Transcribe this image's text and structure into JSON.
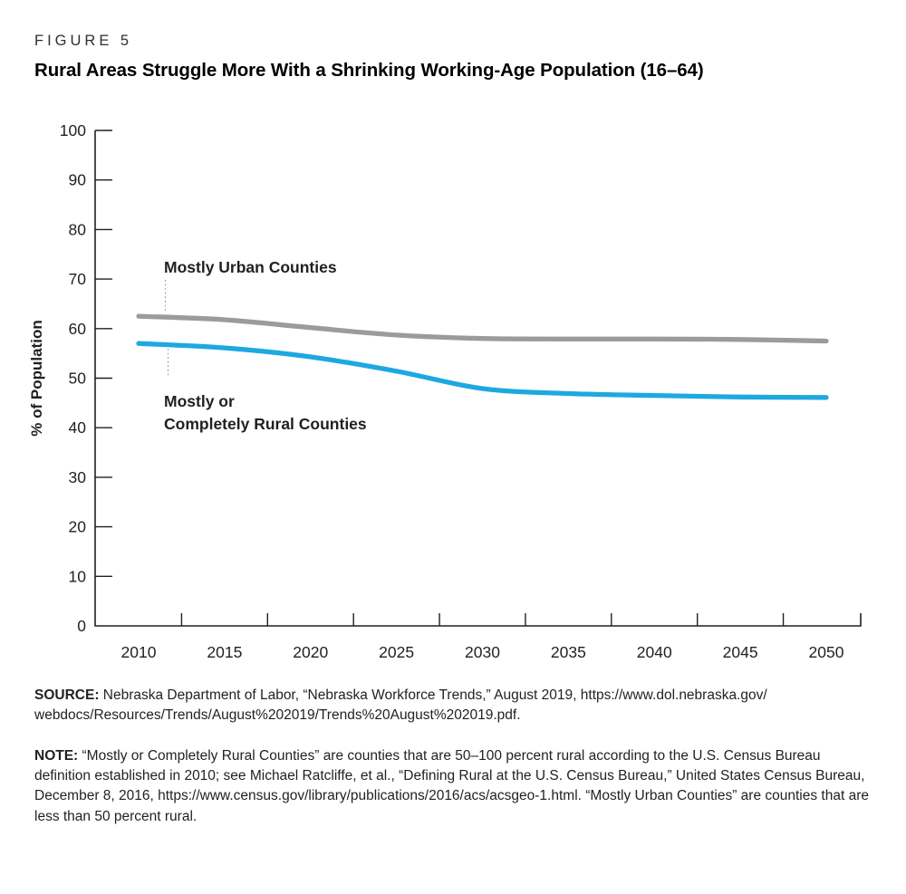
{
  "header": {
    "figure_label": "FIGURE 5",
    "title": "Rural Areas Struggle More With a Shrinking Working-Age Population (16–64)"
  },
  "chart_data": {
    "type": "line",
    "title": "Rural Areas Struggle More With a Shrinking Working-Age Population (16–64)",
    "xlabel": "",
    "ylabel": "% of Population",
    "x": [
      2010,
      2015,
      2020,
      2025,
      2030,
      2035,
      2040,
      2045,
      2050
    ],
    "ylim": [
      0,
      100
    ],
    "y_ticks": [
      0,
      10,
      20,
      30,
      40,
      50,
      60,
      70,
      80,
      90,
      100
    ],
    "grid": false,
    "legend_position": "inline-labels",
    "series": [
      {
        "name": "Mostly Urban Counties",
        "color": "#9b9b9b",
        "values": [
          62.5,
          61.8,
          60.2,
          58.7,
          58.0,
          57.9,
          57.9,
          57.8,
          57.5
        ]
      },
      {
        "name": "Mostly or Completely Rural Counties",
        "color": "#1ea8e0",
        "values": [
          57.0,
          56.1,
          54.3,
          51.4,
          47.9,
          46.9,
          46.5,
          46.2,
          46.1
        ]
      }
    ],
    "annotations": [
      {
        "series": 0,
        "label_lines": [
          "Mostly Urban Counties"
        ]
      },
      {
        "series": 1,
        "label_lines": [
          "Mostly or",
          "Completely Rural Counties"
        ]
      }
    ]
  },
  "colors": {
    "urban_line": "#9b9b9b",
    "rural_line": "#1ea8e0",
    "axis": "#231f20",
    "leader": "#939598"
  },
  "notes": {
    "source_label": "SOURCE:",
    "source_text": " Nebraska Department of Labor, “Nebraska Workforce Trends,” August 2019, https://www.dol.nebraska.gov/​webdocs/Resources/Trends/August%202019/Trends%20August%202019.pdf.",
    "note_label": "NOTE:",
    "note_text": " “Mostly or Completely Rural Counties” are counties that are 50–100 percent rural according to the U.S. Census Bureau definition established in 2010; see Michael Ratcliffe, et al., “Defining Rural at the U.S. Census Bureau,” United States Census Bureau, December 8, 2016, https://www.census.gov/​library/publications/2016/acs/acsgeo-1.html. “Mostly Urban Counties” are counties that are less than 50 percent rural."
  }
}
